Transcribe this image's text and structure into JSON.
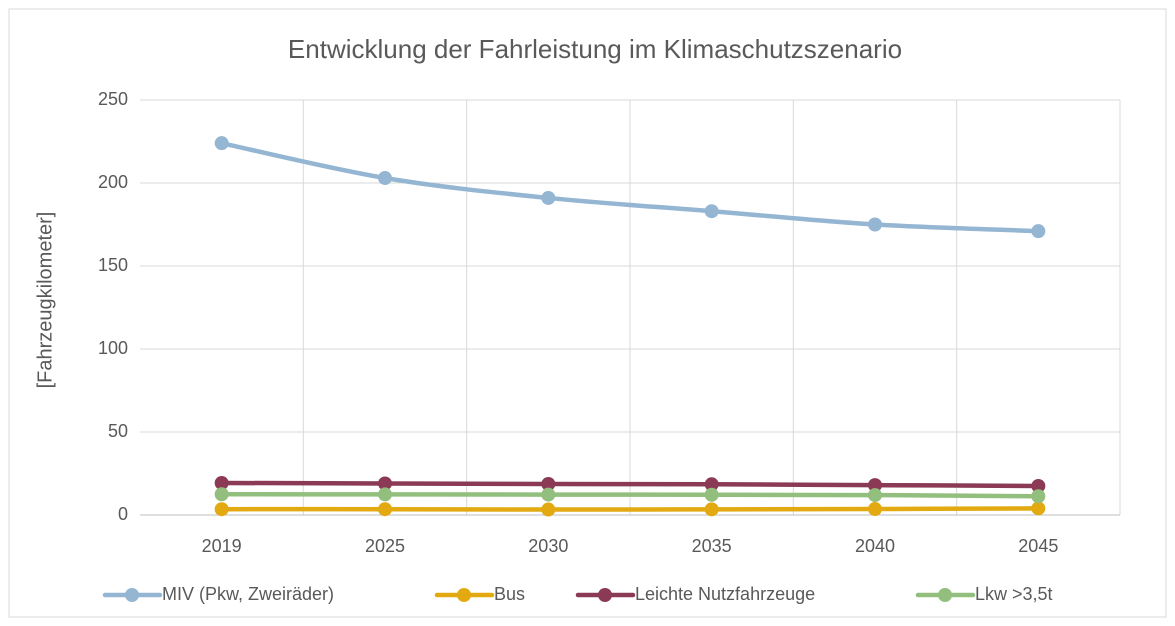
{
  "chart_data": {
    "type": "line",
    "title": "Entwicklung der Fahrleistung im Klimaschutzszenario",
    "y_label": "[Fahrzeugkilometer]",
    "categories": [
      "2019",
      "2025",
      "2030",
      "2035",
      "2040",
      "2045"
    ],
    "series": [
      {
        "name": "MIV (Pkw, Zweiräder)",
        "color": "#94b6d2",
        "values": [
          224,
          203,
          191,
          183,
          175,
          171
        ]
      },
      {
        "name": "Bus",
        "color": "#e2aa10",
        "values": [
          3.5,
          3.5,
          3.3,
          3.4,
          3.6,
          4
        ]
      },
      {
        "name": "Leichte Nutzfahrzeuge",
        "color": "#8b3a55",
        "values": [
          19.3,
          19,
          18.7,
          18.5,
          18,
          17.5
        ]
      },
      {
        "name": "Lkw >3,5t",
        "color": "#93bf7e",
        "values": [
          12.5,
          12.4,
          12.3,
          12.2,
          12,
          11.3
        ]
      }
    ],
    "ylim": [
      0,
      250
    ],
    "yticks": [
      0,
      50,
      100,
      150,
      200,
      250
    ],
    "grid": true,
    "legend": "bottom"
  }
}
